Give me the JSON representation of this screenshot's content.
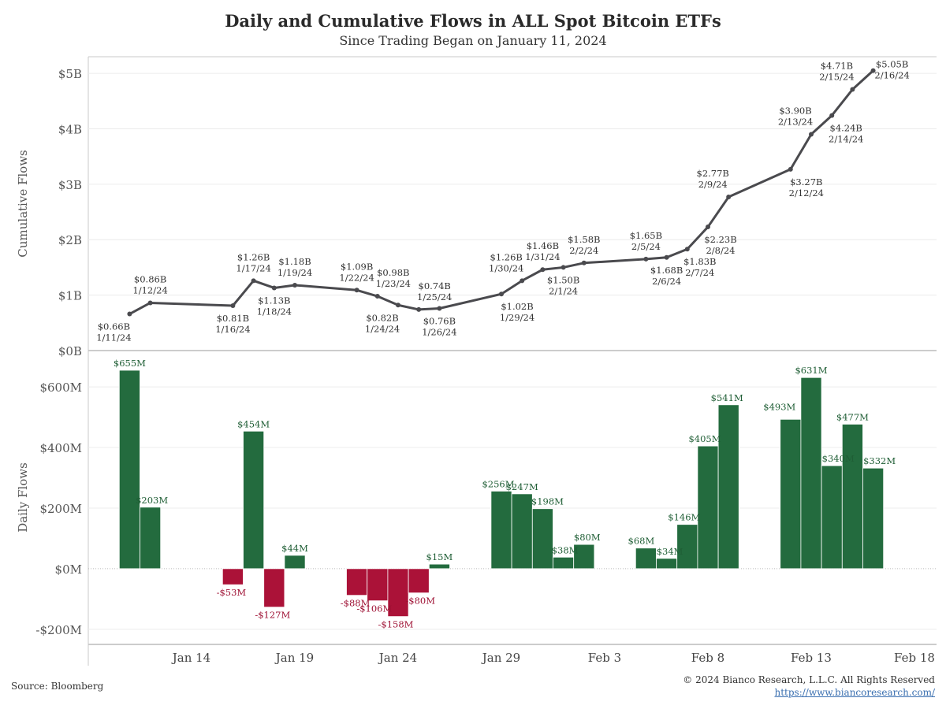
{
  "header": {
    "title": "Daily and Cumulative Flows in ALL Spot Bitcoin ETFs",
    "subtitle": "Since Trading Began on January 11, 2024"
  },
  "footer": {
    "source": "Source: Bloomberg",
    "copyright": "© 2024 Bianco Research, L.L.C. All Rights Reserved",
    "url": "https://www.biancoresearch.com/"
  },
  "colors": {
    "line": "#4a4a4e",
    "positive": "#236b3e",
    "negative": "#ab1238",
    "positive_label": "#1f5e35",
    "negative_label": "#9e1033"
  },
  "chart_data": [
    {
      "type": "line",
      "ylabel": "Cumulative Flows",
      "ylim": [
        0,
        5.3
      ],
      "yticks": [
        0,
        1,
        2,
        3,
        4,
        5
      ],
      "ytick_labels": [
        "$0B",
        "$1B",
        "$2B",
        "$3B",
        "$4B",
        "$5B"
      ],
      "grid": true,
      "points": [
        {
          "date": "2024-01-11",
          "value": 0.66,
          "label": "$0.66B",
          "date_label": "1/11/24"
        },
        {
          "date": "2024-01-12",
          "value": 0.86,
          "label": "$0.86B",
          "date_label": "1/12/24"
        },
        {
          "date": "2024-01-16",
          "value": 0.81,
          "label": "$0.81B",
          "date_label": "1/16/24"
        },
        {
          "date": "2024-01-17",
          "value": 1.26,
          "label": "$1.26B",
          "date_label": "1/17/24"
        },
        {
          "date": "2024-01-18",
          "value": 1.13,
          "label": "$1.13B",
          "date_label": "1/18/24"
        },
        {
          "date": "2024-01-19",
          "value": 1.18,
          "label": "$1.18B",
          "date_label": "1/19/24"
        },
        {
          "date": "2024-01-22",
          "value": 1.09,
          "label": "$1.09B",
          "date_label": "1/22/24"
        },
        {
          "date": "2024-01-23",
          "value": 0.98,
          "label": "$0.98B",
          "date_label": "1/23/24"
        },
        {
          "date": "2024-01-24",
          "value": 0.82,
          "label": "$0.82B",
          "date_label": "1/24/24"
        },
        {
          "date": "2024-01-25",
          "value": 0.74,
          "label": "$0.74B",
          "date_label": "1/25/24"
        },
        {
          "date": "2024-01-26",
          "value": 0.76,
          "label": "$0.76B",
          "date_label": "1/26/24"
        },
        {
          "date": "2024-01-29",
          "value": 1.02,
          "label": "$1.02B",
          "date_label": "1/29/24"
        },
        {
          "date": "2024-01-30",
          "value": 1.26,
          "label": "$1.26B",
          "date_label": "1/30/24"
        },
        {
          "date": "2024-01-31",
          "value": 1.46,
          "label": "$1.46B",
          "date_label": "1/31/24"
        },
        {
          "date": "2024-02-01",
          "value": 1.5,
          "label": "$1.50B",
          "date_label": "2/1/24"
        },
        {
          "date": "2024-02-02",
          "value": 1.58,
          "label": "$1.58B",
          "date_label": "2/2/24"
        },
        {
          "date": "2024-02-05",
          "value": 1.65,
          "label": "$1.65B",
          "date_label": "2/5/24"
        },
        {
          "date": "2024-02-06",
          "value": 1.68,
          "label": "$1.68B",
          "date_label": "2/6/24"
        },
        {
          "date": "2024-02-07",
          "value": 1.83,
          "label": "$1.83B",
          "date_label": "2/7/24"
        },
        {
          "date": "2024-02-08",
          "value": 2.23,
          "label": "$2.23B",
          "date_label": "2/8/24"
        },
        {
          "date": "2024-02-09",
          "value": 2.77,
          "label": "$2.77B",
          "date_label": "2/9/24"
        },
        {
          "date": "2024-02-12",
          "value": 3.27,
          "label": "$3.27B",
          "date_label": "2/12/24"
        },
        {
          "date": "2024-02-13",
          "value": 3.9,
          "label": "$3.90B",
          "date_label": "2/13/24"
        },
        {
          "date": "2024-02-14",
          "value": 4.24,
          "label": "$4.24B",
          "date_label": "2/14/24"
        },
        {
          "date": "2024-02-15",
          "value": 4.71,
          "label": "$4.71B",
          "date_label": "2/15/24"
        },
        {
          "date": "2024-02-16",
          "value": 5.05,
          "label": "$5.05B",
          "date_label": "2/16/24"
        }
      ]
    },
    {
      "type": "bar",
      "ylabel": "Daily Flows",
      "ylim": [
        -250,
        720
      ],
      "yticks": [
        -200,
        0,
        200,
        400,
        600
      ],
      "ytick_labels": [
        "-$200M",
        "$0M",
        "$200M",
        "$400M",
        "$600M"
      ],
      "grid": true,
      "xticks": [
        {
          "date": "2024-01-14",
          "label": "Jan 14"
        },
        {
          "date": "2024-01-19",
          "label": "Jan 19"
        },
        {
          "date": "2024-01-24",
          "label": "Jan 24"
        },
        {
          "date": "2024-01-29",
          "label": "Jan 29"
        },
        {
          "date": "2024-02-03",
          "label": "Feb 3"
        },
        {
          "date": "2024-02-08",
          "label": "Feb 8"
        },
        {
          "date": "2024-02-13",
          "label": "Feb 13"
        },
        {
          "date": "2024-02-18",
          "label": "Feb 18"
        }
      ],
      "bars": [
        {
          "date": "2024-01-11",
          "value": 655,
          "label": "$655M"
        },
        {
          "date": "2024-01-12",
          "value": 203,
          "label": "$203M"
        },
        {
          "date": "2024-01-16",
          "value": -53,
          "label": "-$53M"
        },
        {
          "date": "2024-01-17",
          "value": 454,
          "label": "$454M"
        },
        {
          "date": "2024-01-18",
          "value": -127,
          "label": "-$127M"
        },
        {
          "date": "2024-01-19",
          "value": 44,
          "label": "$44M"
        },
        {
          "date": "2024-01-22",
          "value": -88,
          "label": "-$88M"
        },
        {
          "date": "2024-01-23",
          "value": -106,
          "label": "-$106M"
        },
        {
          "date": "2024-01-24",
          "value": -158,
          "label": "-$158M"
        },
        {
          "date": "2024-01-25",
          "value": -80,
          "label": "-$80M"
        },
        {
          "date": "2024-01-26",
          "value": 15,
          "label": "$15M"
        },
        {
          "date": "2024-01-29",
          "value": 256,
          "label": "$256M"
        },
        {
          "date": "2024-01-30",
          "value": 247,
          "label": "$247M"
        },
        {
          "date": "2024-01-31",
          "value": 198,
          "label": "$198M"
        },
        {
          "date": "2024-02-01",
          "value": 38,
          "label": "$38M"
        },
        {
          "date": "2024-02-02",
          "value": 80,
          "label": "$80M"
        },
        {
          "date": "2024-02-05",
          "value": 68,
          "label": "$68M"
        },
        {
          "date": "2024-02-06",
          "value": 34,
          "label": "$34M"
        },
        {
          "date": "2024-02-07",
          "value": 146,
          "label": "$146M"
        },
        {
          "date": "2024-02-08",
          "value": 405,
          "label": "$405M"
        },
        {
          "date": "2024-02-09",
          "value": 541,
          "label": "$541M"
        },
        {
          "date": "2024-02-12",
          "value": 493,
          "label": "$493M"
        },
        {
          "date": "2024-02-13",
          "value": 631,
          "label": "$631M"
        },
        {
          "date": "2024-02-14",
          "value": 340,
          "label": "$340M"
        },
        {
          "date": "2024-02-15",
          "value": 477,
          "label": "$477M"
        },
        {
          "date": "2024-02-16",
          "value": 332,
          "label": "$332M"
        }
      ]
    }
  ]
}
